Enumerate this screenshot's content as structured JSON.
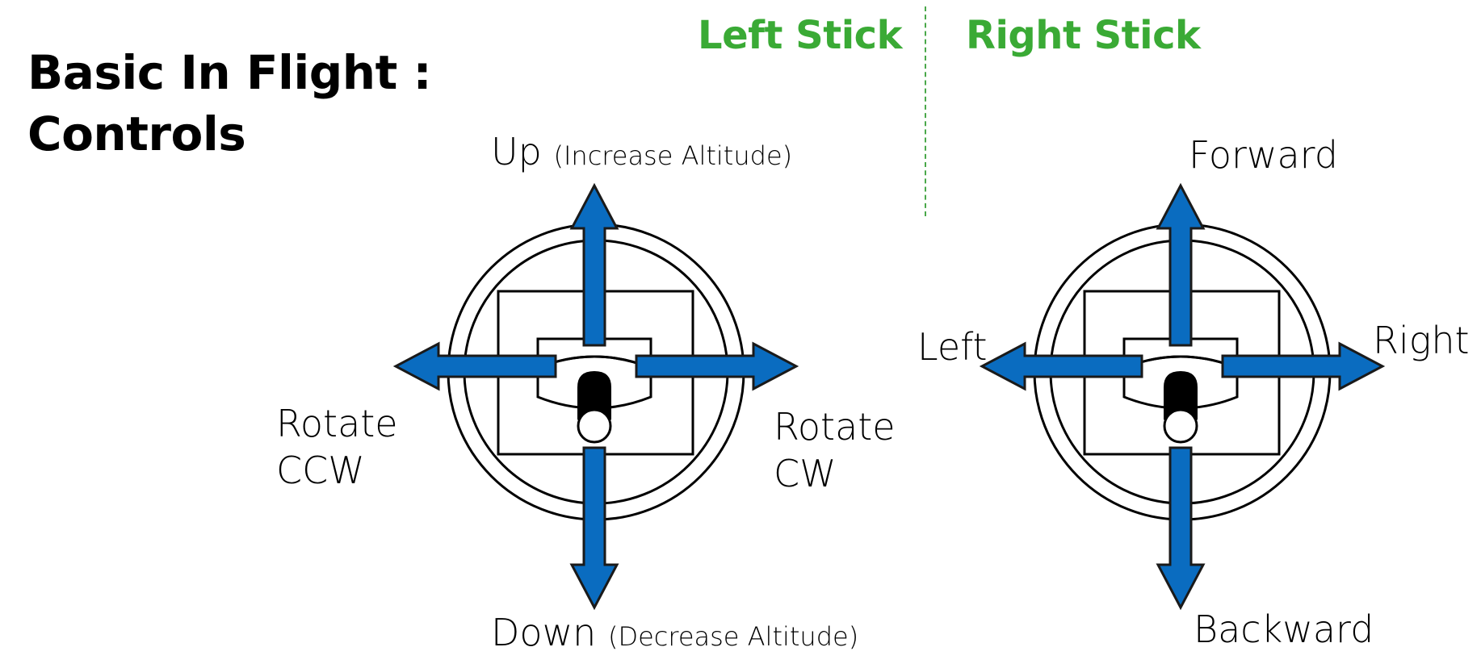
{
  "title": {
    "line1": "Basic In Flight :",
    "line2": "Controls"
  },
  "colors": {
    "heading_green": "#3aaa35",
    "arrow_blue": "#0a6cc0",
    "arrow_stroke": "#1a1a1a",
    "divider_green": "#4aa84a"
  },
  "left_stick": {
    "heading": "Left Stick",
    "up": {
      "main": "Up",
      "detail": "(Increase Altitude)"
    },
    "down": {
      "main": "Down",
      "detail": "(Decrease Altitude)"
    },
    "left": {
      "line1": "Rotate",
      "line2": "CCW"
    },
    "right": {
      "line1": "Rotate",
      "line2": "CW"
    }
  },
  "right_stick": {
    "heading": "Right Stick",
    "up": "Forward",
    "down": "Backward",
    "left": "Left",
    "right": "Right"
  },
  "icons": [
    "joystick-icon",
    "arrow-up-icon",
    "arrow-down-icon",
    "arrow-left-icon",
    "arrow-right-icon"
  ]
}
